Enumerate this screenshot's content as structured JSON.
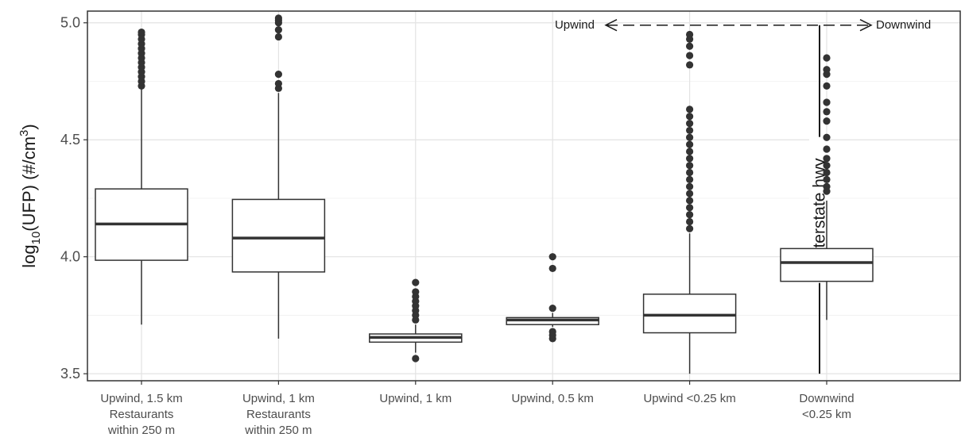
{
  "chart_data": {
    "type": "box",
    "ylabel": {
      "base": "log",
      "sub": "10",
      "mid": "(UFP) (#/cm",
      "sup": "3",
      "end": ")"
    },
    "ylim": [
      3.47,
      5.05
    ],
    "yticks": [
      3.5,
      4.0,
      4.5,
      5.0
    ],
    "ytick_labels": [
      "3.5",
      "4.0",
      "4.5",
      "5.0"
    ],
    "grid": true,
    "categories": [
      [
        "Upwind, 1.5 km",
        "Restaurants",
        "within 250 m"
      ],
      [
        "Upwind, 1 km",
        "Restaurants",
        "within 250 m"
      ],
      [
        "Upwind, 1 km"
      ],
      [
        "Upwind, 0.5 km"
      ],
      [
        "Upwind <0.25 km"
      ],
      [
        "Downwind",
        "<0.25 km"
      ]
    ],
    "boxes": [
      {
        "min": 3.71,
        "q1": 3.985,
        "median": 4.14,
        "q3": 4.29,
        "max": 4.72,
        "outliers": [
          4.73,
          4.75,
          4.77,
          4.79,
          4.81,
          4.83,
          4.85,
          4.87,
          4.89,
          4.91,
          4.93,
          4.95,
          4.96
        ]
      },
      {
        "min": 3.65,
        "q1": 3.935,
        "median": 4.08,
        "q3": 4.245,
        "max": 4.7,
        "outliers": [
          4.72,
          4.74,
          4.78,
          4.94,
          4.97,
          5.0,
          5.01,
          5.02
        ]
      },
      {
        "min": 3.59,
        "q1": 3.635,
        "median": 3.655,
        "q3": 3.67,
        "max": 3.71,
        "outliers": [
          3.565,
          3.73,
          3.75,
          3.77,
          3.79,
          3.81,
          3.83,
          3.85,
          3.89
        ]
      },
      {
        "min": 3.7,
        "q1": 3.71,
        "median": 3.73,
        "q3": 3.74,
        "max": 3.76,
        "outliers": [
          3.65,
          3.665,
          3.68,
          3.78,
          3.95,
          4.0
        ]
      },
      {
        "min": 3.5,
        "q1": 3.675,
        "median": 3.75,
        "q3": 3.84,
        "max": 4.1,
        "outliers": [
          4.12,
          4.15,
          4.18,
          4.21,
          4.24,
          4.27,
          4.3,
          4.33,
          4.36,
          4.39,
          4.42,
          4.45,
          4.48,
          4.51,
          4.54,
          4.57,
          4.6,
          4.63,
          4.82,
          4.86,
          4.9,
          4.93,
          4.95
        ]
      },
      {
        "min": 3.73,
        "q1": 3.895,
        "median": 3.975,
        "q3": 4.035,
        "max": 4.24,
        "outliers": [
          4.28,
          4.3,
          4.33,
          4.36,
          4.39,
          4.42,
          4.46,
          4.51,
          4.58,
          4.62,
          4.66,
          4.73,
          4.78,
          4.8,
          4.85
        ]
      }
    ],
    "annotations": {
      "upwind": "Upwind",
      "downwind": "Downwind",
      "highway": "Interstate hwy"
    }
  }
}
